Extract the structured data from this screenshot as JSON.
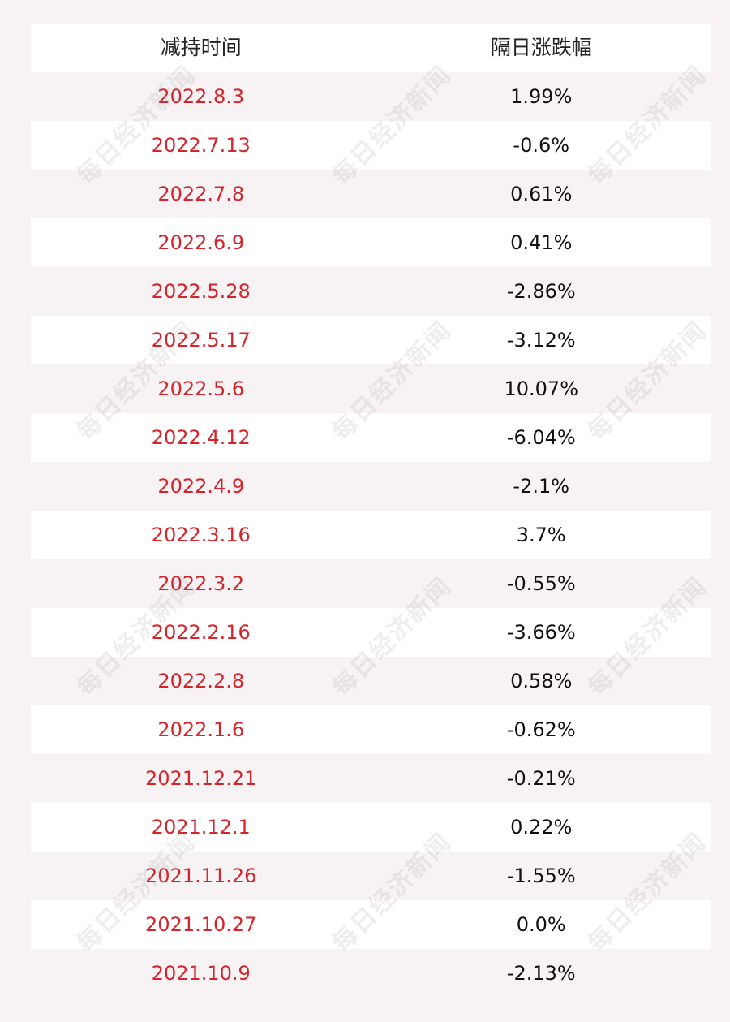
{
  "table": {
    "headers": {
      "date": "减持时间",
      "change": "隔日涨跌幅"
    },
    "rows": [
      {
        "date": "2022.8.3",
        "change": "1.99%"
      },
      {
        "date": "2022.7.13",
        "change": "-0.6%"
      },
      {
        "date": "2022.7.8",
        "change": "0.61%"
      },
      {
        "date": "2022.6.9",
        "change": "0.41%"
      },
      {
        "date": "2022.5.28",
        "change": "-2.86%"
      },
      {
        "date": "2022.5.17",
        "change": "-3.12%"
      },
      {
        "date": "2022.5.6",
        "change": "10.07%"
      },
      {
        "date": "2022.4.12",
        "change": "-6.04%"
      },
      {
        "date": "2022.4.9",
        "change": "-2.1%"
      },
      {
        "date": "2022.3.16",
        "change": "3.7%"
      },
      {
        "date": "2022.3.2",
        "change": "-0.55%"
      },
      {
        "date": "2022.2.16",
        "change": "-3.66%"
      },
      {
        "date": "2022.2.8",
        "change": "0.58%"
      },
      {
        "date": "2022.1.6",
        "change": "-0.62%"
      },
      {
        "date": "2021.12.21",
        "change": "-0.21%"
      },
      {
        "date": "2021.12.1",
        "change": "0.22%"
      },
      {
        "date": "2021.11.26",
        "change": "-1.55%"
      },
      {
        "date": "2021.10.27",
        "change": "0.0%"
      },
      {
        "date": "2021.10.9",
        "change": "-2.13%"
      }
    ]
  },
  "watermark": "每日经济新闻",
  "colors": {
    "background": "#f7f2f4",
    "row_white": "#ffffff",
    "date_text": "#d5252c",
    "change_text": "#111111"
  }
}
